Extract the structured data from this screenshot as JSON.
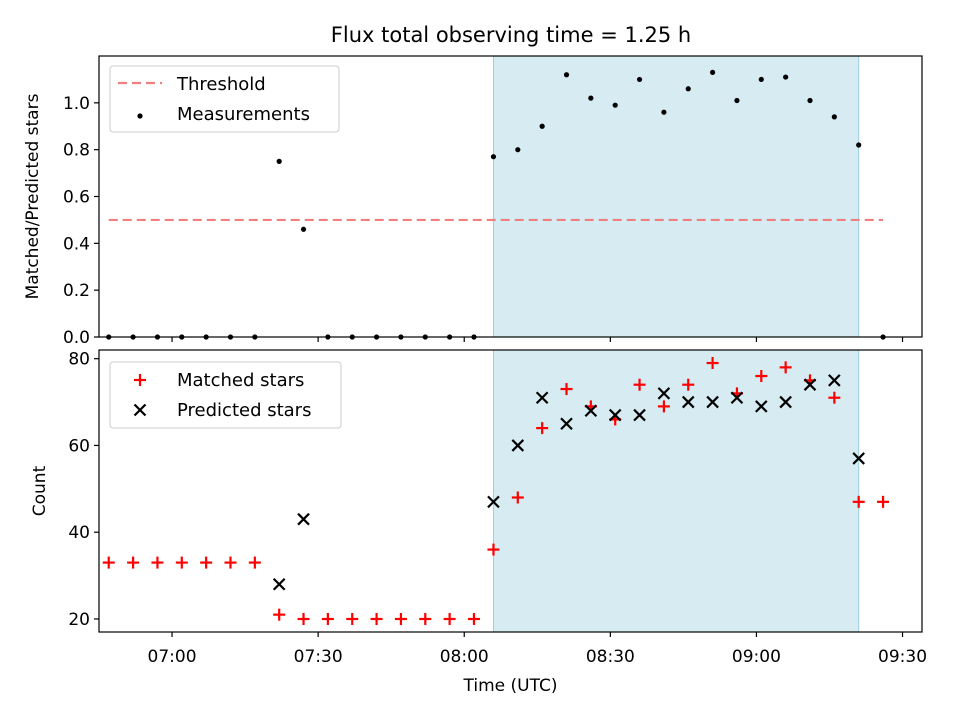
{
  "chart_data": [
    {
      "type": "scatter",
      "title": "Flux total observing time = 1.25 h",
      "xlabel": "",
      "ylabel": "Matched/Predicted stars",
      "xlim": [
        "06:45",
        "09:34"
      ],
      "ylim": [
        0,
        1.2
      ],
      "yticks": [
        "0.0",
        "0.2",
        "0.4",
        "0.6",
        "0.8",
        "1.0"
      ],
      "grid": false,
      "legend": "top-left",
      "shaded_span": {
        "start": "08:06",
        "end": "09:21",
        "color": "#add8e6"
      },
      "threshold": {
        "name": "Threshold",
        "y": 0.5,
        "x_start": "06:47",
        "x_end": "09:26",
        "color": "#f08080"
      },
      "series": [
        {
          "name": "Measurements",
          "color": "#000000",
          "x": [
            "06:47",
            "06:52",
            "06:57",
            "07:02",
            "07:07",
            "07:12",
            "07:17",
            "07:22",
            "07:27",
            "07:32",
            "07:37",
            "07:42",
            "07:47",
            "07:52",
            "07:57",
            "08:02",
            "08:06",
            "08:11",
            "08:16",
            "08:21",
            "08:26",
            "08:31",
            "08:36",
            "08:41",
            "08:46",
            "08:51",
            "08:56",
            "09:01",
            "09:06",
            "09:11",
            "09:16",
            "09:21",
            "09:26"
          ],
          "y": [
            0,
            0,
            0,
            0,
            0,
            0,
            0,
            0.75,
            0.46,
            0,
            0,
            0,
            0,
            0,
            0,
            0,
            0.77,
            0.8,
            0.9,
            1.12,
            1.02,
            0.99,
            1.1,
            0.96,
            1.06,
            1.13,
            1.01,
            1.1,
            1.11,
            1.01,
            0.94,
            0.82,
            0
          ]
        }
      ]
    },
    {
      "type": "scatter",
      "title": "",
      "xlabel": "Time (UTC)",
      "ylabel": "Count",
      "xlim": [
        "06:45",
        "09:34"
      ],
      "ylim": [
        17,
        82
      ],
      "xticks": [
        "07:00",
        "07:30",
        "08:00",
        "08:30",
        "09:00",
        "09:30"
      ],
      "yticks": [
        "20",
        "40",
        "60",
        "80"
      ],
      "grid": false,
      "legend": "top-left",
      "shaded_span": {
        "start": "08:06",
        "end": "09:21",
        "color": "#add8e6"
      },
      "series": [
        {
          "name": "Matched stars",
          "marker": "plus",
          "color": "#ff0000",
          "x": [
            "06:47",
            "06:52",
            "06:57",
            "07:02",
            "07:07",
            "07:12",
            "07:17",
            "07:22",
            "07:27",
            "07:32",
            "07:37",
            "07:42",
            "07:47",
            "07:52",
            "07:57",
            "08:02",
            "08:06",
            "08:11",
            "08:16",
            "08:21",
            "08:26",
            "08:31",
            "08:36",
            "08:41",
            "08:46",
            "08:51",
            "08:56",
            "09:01",
            "09:06",
            "09:11",
            "09:16",
            "09:21",
            "09:26"
          ],
          "y": [
            33,
            33,
            33,
            33,
            33,
            33,
            33,
            21,
            20,
            20,
            20,
            20,
            20,
            20,
            20,
            20,
            36,
            48,
            64,
            73,
            69,
            66,
            74,
            69,
            74,
            79,
            72,
            76,
            78,
            75,
            71,
            47,
            47
          ]
        },
        {
          "name": "Predicted stars",
          "marker": "x",
          "color": "#000000",
          "x": [
            "07:22",
            "07:27",
            "08:06",
            "08:11",
            "08:16",
            "08:21",
            "08:26",
            "08:31",
            "08:36",
            "08:41",
            "08:46",
            "08:51",
            "08:56",
            "09:01",
            "09:06",
            "09:11",
            "09:16",
            "09:21"
          ],
          "y": [
            28,
            43,
            47,
            60,
            71,
            65,
            68,
            67,
            67,
            72,
            70,
            70,
            71,
            69,
            70,
            74,
            75,
            57
          ]
        }
      ]
    }
  ]
}
